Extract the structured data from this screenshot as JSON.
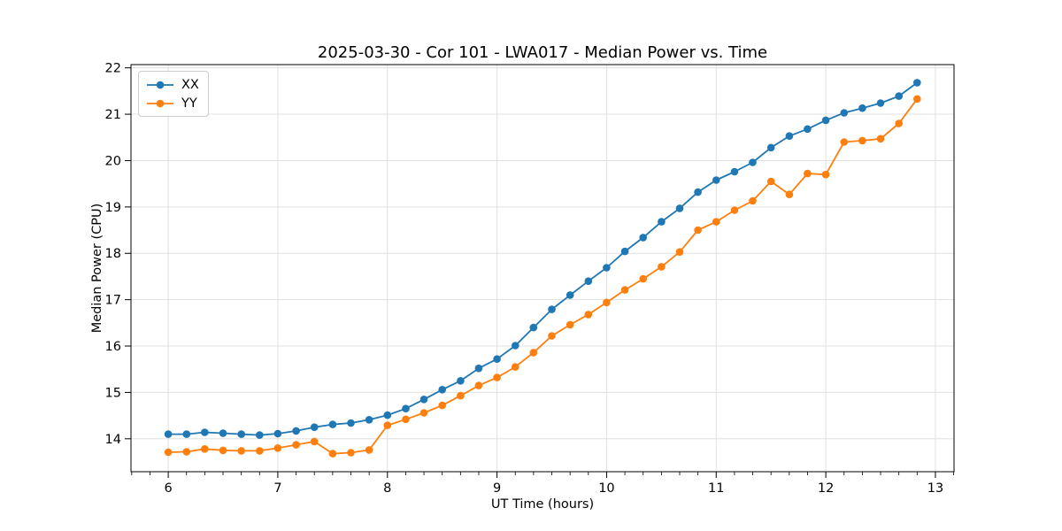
{
  "chart_data": {
    "type": "line",
    "title": "2025-03-30 - Cor 101 - LWA017 - Median Power vs. Time",
    "xlabel": "UT Time (hours)",
    "ylabel": "Median Power (CPU)",
    "xlim": [
      5.66,
      13.17
    ],
    "ylim": [
      13.29,
      22.07
    ],
    "x_ticks": [
      6,
      7,
      8,
      9,
      10,
      11,
      12,
      13
    ],
    "y_ticks": [
      14,
      15,
      16,
      17,
      18,
      19,
      20,
      21,
      22
    ],
    "x_minor_tick_step": 0.16667,
    "grid": true,
    "grid_color": "#e0e0e0",
    "legend_position": "upper-left",
    "marker": "o",
    "x": [
      6.0,
      6.167,
      6.333,
      6.5,
      6.667,
      6.833,
      7.0,
      7.167,
      7.333,
      7.5,
      7.667,
      7.833,
      8.0,
      8.167,
      8.333,
      8.5,
      8.667,
      8.833,
      9.0,
      9.167,
      9.333,
      9.5,
      9.667,
      9.833,
      10.0,
      10.167,
      10.333,
      10.5,
      10.667,
      10.833,
      11.0,
      11.167,
      11.333,
      11.5,
      11.667,
      11.833,
      12.0,
      12.167,
      12.333,
      12.5,
      12.667,
      12.833
    ],
    "series": [
      {
        "name": "XX",
        "color": "#1f77b4",
        "values": [
          14.1,
          14.1,
          14.14,
          14.12,
          14.1,
          14.08,
          14.11,
          14.17,
          14.25,
          14.31,
          14.34,
          14.41,
          14.51,
          14.65,
          14.85,
          15.06,
          15.25,
          15.52,
          15.72,
          16.01,
          16.4,
          16.79,
          17.1,
          17.4,
          17.69,
          18.04,
          18.34,
          18.68,
          18.97,
          19.32,
          19.58,
          19.76,
          19.96,
          20.28,
          20.53,
          20.68,
          20.87,
          21.03,
          21.13,
          21.24,
          21.39,
          21.68
        ]
      },
      {
        "name": "YY",
        "color": "#ff7f0e",
        "values": [
          13.71,
          13.72,
          13.78,
          13.75,
          13.74,
          13.74,
          13.8,
          13.87,
          13.94,
          13.68,
          13.7,
          13.76,
          14.29,
          14.42,
          14.56,
          14.72,
          14.93,
          15.15,
          15.32,
          15.55,
          15.86,
          16.22,
          16.46,
          16.68,
          16.94,
          17.21,
          17.45,
          17.71,
          18.03,
          18.5,
          18.68,
          18.93,
          19.13,
          19.55,
          19.27,
          19.72,
          19.7,
          20.4,
          20.43,
          20.47,
          20.8,
          21.33
        ]
      }
    ]
  }
}
